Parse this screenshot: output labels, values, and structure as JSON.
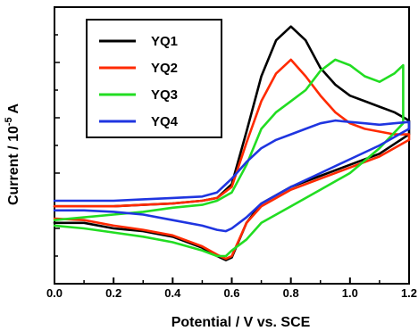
{
  "chart_data": {
    "type": "line",
    "title": "",
    "xlabel": "Potential / V vs. SCE",
    "ylabel": {
      "prefix": "Current / 10",
      "exp": "-5",
      "suffix": " A"
    },
    "xlim": [
      0.0,
      1.2
    ],
    "ylim": [
      0,
      10
    ],
    "y_tick_labels_shown": false,
    "grid": false,
    "legend_position": "top-left",
    "x_ticks": [
      "0.0",
      "0.2",
      "0.4",
      "0.6",
      "0.8",
      "1.0",
      "1.2"
    ],
    "series": [
      {
        "name": "YQ1",
        "color": "#000000",
        "x": [
          0.0,
          0.1,
          0.2,
          0.3,
          0.4,
          0.5,
          0.55,
          0.6,
          0.65,
          0.7,
          0.75,
          0.8,
          0.85,
          0.9,
          0.95,
          1.0,
          1.05,
          1.1,
          1.15,
          1.2,
          1.2,
          1.1,
          1.0,
          0.9,
          0.8,
          0.7,
          0.65,
          0.6,
          0.58,
          0.55,
          0.5,
          0.4,
          0.3,
          0.2,
          0.1,
          0.0
        ],
        "y": [
          2.8,
          2.8,
          2.8,
          2.85,
          2.9,
          3.0,
          3.1,
          3.6,
          5.5,
          7.5,
          8.8,
          9.3,
          8.8,
          7.8,
          7.2,
          6.8,
          6.6,
          6.4,
          6.2,
          5.9,
          5.4,
          4.7,
          4.3,
          3.9,
          3.5,
          2.9,
          2.2,
          0.95,
          0.85,
          1.0,
          1.3,
          1.7,
          1.9,
          2.0,
          2.2,
          2.2
        ]
      },
      {
        "name": "YQ2",
        "color": "#ff2a00",
        "x": [
          0.0,
          0.1,
          0.2,
          0.3,
          0.4,
          0.5,
          0.55,
          0.6,
          0.65,
          0.7,
          0.75,
          0.8,
          0.85,
          0.9,
          0.95,
          1.0,
          1.05,
          1.1,
          1.15,
          1.2,
          1.2,
          1.1,
          1.0,
          0.9,
          0.8,
          0.7,
          0.65,
          0.6,
          0.58,
          0.55,
          0.5,
          0.4,
          0.3,
          0.2,
          0.1,
          0.0
        ],
        "y": [
          2.8,
          2.8,
          2.8,
          2.85,
          2.9,
          3.0,
          3.1,
          3.5,
          5.1,
          6.6,
          7.6,
          8.1,
          7.5,
          6.8,
          6.2,
          5.8,
          5.6,
          5.5,
          5.4,
          5.4,
          5.2,
          4.6,
          4.2,
          3.8,
          3.4,
          2.8,
          2.2,
          1.0,
          0.9,
          1.05,
          1.35,
          1.75,
          1.95,
          2.1,
          2.3,
          2.35
        ]
      },
      {
        "name": "YQ3",
        "color": "#22dd22",
        "x": [
          0.0,
          0.1,
          0.2,
          0.3,
          0.4,
          0.5,
          0.55,
          0.6,
          0.65,
          0.7,
          0.75,
          0.8,
          0.85,
          0.9,
          0.95,
          1.0,
          1.05,
          1.1,
          1.15,
          1.18,
          1.18,
          1.1,
          1.0,
          0.9,
          0.8,
          0.7,
          0.65,
          0.6,
          0.58,
          0.55,
          0.5,
          0.4,
          0.3,
          0.2,
          0.1,
          0.0
        ],
        "y": [
          2.3,
          2.4,
          2.5,
          2.6,
          2.75,
          2.85,
          3.0,
          3.3,
          4.3,
          5.6,
          6.2,
          6.6,
          7.0,
          7.7,
          8.1,
          7.9,
          7.5,
          7.3,
          7.6,
          7.9,
          5.8,
          4.9,
          4.0,
          3.4,
          2.8,
          2.2,
          1.6,
          1.2,
          1.0,
          1.0,
          1.2,
          1.5,
          1.7,
          1.85,
          2.0,
          2.1
        ]
      },
      {
        "name": "YQ4",
        "color": "#1f35e0",
        "x": [
          0.0,
          0.1,
          0.2,
          0.3,
          0.4,
          0.5,
          0.55,
          0.6,
          0.65,
          0.7,
          0.75,
          0.8,
          0.85,
          0.9,
          0.95,
          1.0,
          1.05,
          1.1,
          1.15,
          1.2,
          1.2,
          1.1,
          1.0,
          0.9,
          0.8,
          0.7,
          0.65,
          0.6,
          0.58,
          0.55,
          0.5,
          0.4,
          0.3,
          0.2,
          0.1,
          0.0
        ],
        "y": [
          3.0,
          3.0,
          3.0,
          3.05,
          3.1,
          3.15,
          3.3,
          3.8,
          4.4,
          4.9,
          5.2,
          5.4,
          5.6,
          5.8,
          5.9,
          5.85,
          5.8,
          5.75,
          5.8,
          5.85,
          5.6,
          5.0,
          4.5,
          4.0,
          3.5,
          2.9,
          2.4,
          2.0,
          1.9,
          1.95,
          2.1,
          2.3,
          2.5,
          2.6,
          2.65,
          2.65
        ]
      }
    ]
  }
}
